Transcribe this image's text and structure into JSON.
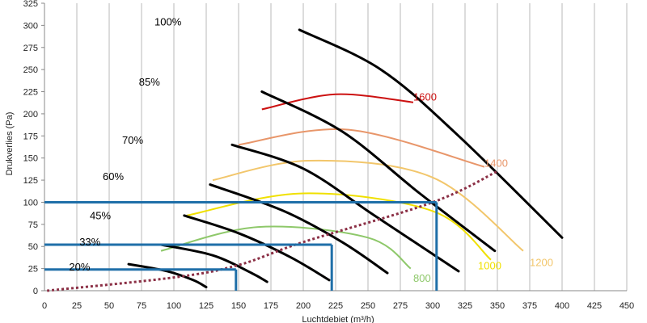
{
  "chart_data": {
    "type": "line",
    "xlabel": "Luchtdebiet (m³/h)",
    "ylabel": "Drukverlies (Pa)",
    "xlim": [
      0,
      450
    ],
    "ylim": [
      0,
      325
    ],
    "x_ticks": [
      0,
      25,
      50,
      75,
      100,
      125,
      150,
      175,
      200,
      225,
      250,
      275,
      300,
      325,
      350,
      375,
      400,
      425,
      450
    ],
    "y_ticks": [
      0,
      25,
      50,
      75,
      100,
      125,
      150,
      175,
      200,
      225,
      250,
      275,
      300,
      325
    ],
    "grid": {
      "vertical": true,
      "horizontal": false
    },
    "fan_curves": [
      {
        "label": "100%",
        "color": "#000000",
        "label_at": [
          85,
          300
        ],
        "points": [
          [
            197,
            295
          ],
          [
            260,
            250
          ],
          [
            320,
            175
          ],
          [
            400,
            60
          ]
        ]
      },
      {
        "label": "85%",
        "color": "#000000",
        "label_at": [
          73,
          232
        ],
        "points": [
          [
            168,
            225
          ],
          [
            230,
            180
          ],
          [
            290,
            110
          ],
          [
            348,
            45
          ]
        ]
      },
      {
        "label": "70%",
        "color": "#000000",
        "label_at": [
          60,
          166
        ],
        "points": [
          [
            145,
            165
          ],
          [
            200,
            138
          ],
          [
            255,
            85
          ],
          [
            320,
            22
          ]
        ]
      },
      {
        "label": "60%",
        "color": "#000000",
        "label_at": [
          45,
          125
        ],
        "points": [
          [
            128,
            120
          ],
          [
            185,
            90
          ],
          [
            230,
            55
          ],
          [
            265,
            20
          ]
        ]
      },
      {
        "label": "45%",
        "color": "#000000",
        "label_at": [
          35,
          81
        ],
        "points": [
          [
            108,
            85
          ],
          [
            150,
            65
          ],
          [
            190,
            38
          ],
          [
            220,
            12
          ]
        ]
      },
      {
        "label": "33%",
        "color": "#000000",
        "label_at": [
          27,
          51
        ],
        "points": [
          [
            90,
            52
          ],
          [
            130,
            40
          ],
          [
            160,
            20
          ],
          [
            172,
            10
          ]
        ]
      },
      {
        "label": "20%",
        "color": "#000000",
        "label_at": [
          19,
          23
        ],
        "points": [
          [
            65,
            30
          ],
          [
            95,
            22
          ],
          [
            115,
            12
          ],
          [
            125,
            4
          ]
        ]
      }
    ],
    "speed_curves": [
      {
        "label": "1600",
        "color": "#cc1111",
        "label_at": [
          285,
          215
        ],
        "points": [
          [
            168,
            205
          ],
          [
            225,
            222
          ],
          [
            285,
            213
          ]
        ]
      },
      {
        "label": "1400",
        "color": "#e8966a",
        "label_at": [
          340,
          140
        ],
        "points": [
          [
            150,
            165
          ],
          [
            235,
            182
          ],
          [
            340,
            140
          ]
        ]
      },
      {
        "label": "1200",
        "color": "#f2c66b",
        "label_at": [
          375,
          28
        ],
        "points": [
          [
            130,
            125
          ],
          [
            205,
            147
          ],
          [
            300,
            128
          ],
          [
            370,
            45
          ]
        ]
      },
      {
        "label": "1000",
        "color": "#f0e000",
        "label_at": [
          335,
          24
        ],
        "points": [
          [
            110,
            85
          ],
          [
            200,
            110
          ],
          [
            300,
            90
          ],
          [
            345,
            35
          ]
        ]
      },
      {
        "label": "800",
        "color": "#8ec86a",
        "label_at": [
          285,
          10
        ],
        "points": [
          [
            90,
            45
          ],
          [
            165,
            72
          ],
          [
            250,
            60
          ],
          [
            283,
            25
          ]
        ]
      }
    ],
    "system_curve": {
      "color": "#8b2f45",
      "dashed": true,
      "points": [
        [
          2,
          0
        ],
        [
          100,
          15
        ],
        [
          150,
          29
        ],
        [
          200,
          55
        ],
        [
          300,
          100
        ],
        [
          350,
          135
        ]
      ]
    },
    "reference_lines": {
      "color": "#1f6fa8",
      "horizontal": [
        [
          100,
          303
        ],
        [
          52,
          222
        ],
        [
          24,
          148
        ]
      ],
      "vertical": [
        [
          303,
          100
        ],
        [
          222,
          52
        ],
        [
          148,
          24
        ]
      ]
    }
  }
}
